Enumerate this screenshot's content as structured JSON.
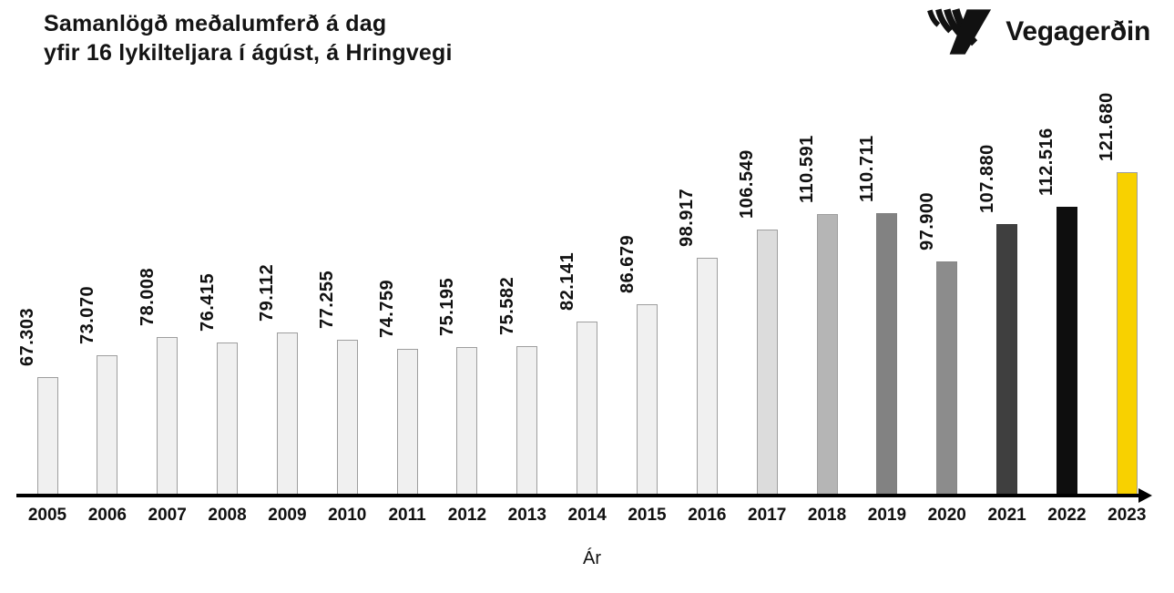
{
  "header": {
    "title_line1": "Samanlögð meðalumferð á dag",
    "title_line2": "yfir 16 lykilteljara í ágúst, á Hringvegi",
    "logo_text": "Vegagerðin"
  },
  "chart_data": {
    "type": "bar",
    "title": "Samanlögð meðalumferð á dag yfir 16 lykilteljara í ágúst, á Hringvegi",
    "categories": [
      "2005",
      "2006",
      "2007",
      "2008",
      "2009",
      "2010",
      "2011",
      "2012",
      "2013",
      "2014",
      "2015",
      "2016",
      "2017",
      "2018",
      "2019",
      "2020",
      "2021",
      "2022",
      "2023"
    ],
    "values": [
      67303,
      73070,
      78008,
      76415,
      79112,
      77255,
      74759,
      75195,
      75582,
      82141,
      86679,
      98917,
      106549,
      110591,
      110711,
      97900,
      107880,
      112516,
      121680
    ],
    "value_labels": [
      "67.303",
      "73.070",
      "78.008",
      "76.415",
      "79.112",
      "77.255",
      "74.759",
      "75.195",
      "75.582",
      "82.141",
      "86.679",
      "98.917",
      "106.549",
      "110.591",
      "110.711",
      "97.900",
      "107.880",
      "112.516",
      "121.680"
    ],
    "xlabel": "Ár",
    "ylabel": "",
    "ylim": [
      35400,
      125000
    ],
    "grid": false,
    "legend": false,
    "bar_colors": [
      "#f0f0f0",
      "#f0f0f0",
      "#f0f0f0",
      "#f0f0f0",
      "#f0f0f0",
      "#f0f0f0",
      "#f0f0f0",
      "#f0f0f0",
      "#f0f0f0",
      "#f0f0f0",
      "#f0f0f0",
      "#f0f0f0",
      "#dcdcdc",
      "#b5b5b5",
      "#828282",
      "#8c8c8c",
      "#3f3f3f",
      "#0e0e0e",
      "#f8d100"
    ],
    "bar_border_colors": [
      "#9e9e9e",
      "#9e9e9e",
      "#9e9e9e",
      "#9e9e9e",
      "#9e9e9e",
      "#9e9e9e",
      "#9e9e9e",
      "#9e9e9e",
      "#9e9e9e",
      "#9e9e9e",
      "#9e9e9e",
      "#9e9e9e",
      "#9e9e9e",
      "#9e9e9e",
      "#7e7e7e",
      "#868686",
      "#3a3a3a",
      "#0e0e0e",
      "#9e9e9e"
    ],
    "highlight_color": "#f8d100",
    "axis_color": "#000000",
    "label_color": "#111111"
  }
}
